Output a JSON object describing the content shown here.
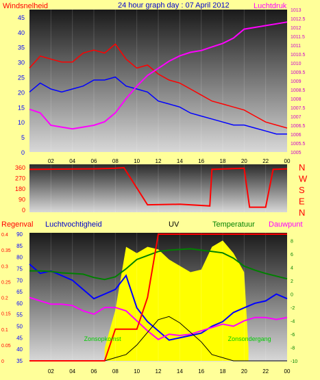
{
  "title": "24 hour graph day : 07 April 2012",
  "colors": {
    "bg": "#ffff99",
    "wind_gust": "#ff0000",
    "wind_avg": "#0000ff",
    "pressure": "#ff00ff",
    "dir": "#ff0000",
    "rain": "#ff0000",
    "humidity": "#0000ff",
    "temp": "#008000",
    "dew": "#ff00ff",
    "uv": "#000000",
    "solar": "#ffff00",
    "axis_left": "#0000ff",
    "axis_pressure": "#cc00cc",
    "axis_temp": "#008000"
  },
  "x_ticks": [
    "02",
    "04",
    "06",
    "08",
    "10",
    "12",
    "14",
    "16",
    "18",
    "20",
    "22",
    "00"
  ],
  "chart_data": [
    {
      "type": "line",
      "ylabel_left": "Windsnelheid",
      "ylabel_right": "Luchtdruk",
      "ylim_left": [
        0,
        47.5
      ],
      "ylim_right": [
        1005,
        1013
      ],
      "y_ticks_left": [
        "0",
        "5",
        "10",
        "15",
        "20",
        "25",
        "30",
        "35",
        "40",
        "45"
      ],
      "y_ticks_right": [
        "1005",
        "1005.5",
        "1006",
        "1006.5",
        "1007",
        "1007.5",
        "1008",
        "1008.5",
        "1009",
        "1009.5",
        "1010",
        "1010.5",
        "1011",
        "1011.5",
        "1012",
        "1012.5",
        "1013"
      ],
      "x": [
        0,
        1,
        2,
        3,
        4,
        5,
        6,
        7,
        8,
        9,
        10,
        11,
        12,
        13,
        14,
        15,
        16,
        17,
        18,
        19,
        20,
        21,
        22,
        23,
        24
      ],
      "series": [
        {
          "role": "wind_gust",
          "axis": "left",
          "values": [
            28,
            32,
            31,
            30,
            30,
            33,
            34,
            33,
            36,
            31,
            28,
            29,
            26,
            24,
            23,
            21,
            19,
            17,
            16,
            15,
            14,
            12,
            10,
            9,
            8
          ]
        },
        {
          "role": "wind_avg",
          "axis": "left",
          "values": [
            20,
            23,
            21,
            20,
            21,
            22,
            24,
            24,
            25,
            22,
            21,
            20,
            17,
            16,
            15,
            13,
            12,
            11,
            10,
            9,
            9,
            8,
            7,
            6,
            6
          ]
        },
        {
          "role": "pressure",
          "axis": "right",
          "values": [
            1007.4,
            1007.2,
            1006.5,
            1006.4,
            1006.3,
            1006.4,
            1006.5,
            1006.7,
            1007.2,
            1008.0,
            1008.7,
            1009.3,
            1009.7,
            1010.1,
            1010.4,
            1010.6,
            1010.7,
            1010.9,
            1011.1,
            1011.4,
            1011.9,
            1012.0,
            1012.1,
            1012.2,
            1012.3
          ]
        }
      ]
    },
    {
      "type": "line",
      "y_ticks": [
        "360",
        "270",
        "180",
        "90",
        "0"
      ],
      "ylim": [
        0,
        360
      ],
      "dir_labels": [
        "N",
        "W",
        "S",
        "E",
        "N"
      ],
      "x": [
        0,
        6,
        8,
        8.8,
        11,
        14,
        16.8,
        17,
        20,
        20.5,
        22,
        22.7,
        24
      ],
      "series": [
        {
          "role": "dir",
          "values": [
            340,
            345,
            350,
            355,
            40,
            45,
            30,
            340,
            350,
            20,
            20,
            340,
            345
          ]
        }
      ]
    },
    {
      "type": "line",
      "labels": {
        "rain": "Regenval",
        "humidity": "Luchtvochtigheid",
        "uv": "UV",
        "temp": "Temperatuur",
        "dew": "Dauwpunt"
      },
      "ylim_rain": [
        0,
        0.4
      ],
      "ylim_hum": [
        35,
        90
      ],
      "ylim_temp": [
        -10,
        9
      ],
      "y_ticks_rain": [
        "0",
        "0.05",
        "0.1",
        "0.15",
        "0.2",
        "0.25",
        "0.3",
        "0.35",
        "0.4"
      ],
      "y_ticks_hum": [
        "35",
        "40",
        "45",
        "50",
        "55",
        "60",
        "65",
        "70",
        "75",
        "80",
        "85",
        "90"
      ],
      "y_ticks_temp": [
        "-10",
        "-8",
        "-6",
        "-4",
        "-2",
        "0",
        "2",
        "4",
        "6",
        "8"
      ],
      "annotations": [
        "Zonsopkomst",
        "Zonsondergang"
      ],
      "sunrise": 7.0,
      "sunset": 20.4,
      "x": [
        0,
        1,
        2,
        3,
        4,
        5,
        6,
        7,
        8,
        9,
        10,
        11,
        12,
        13,
        14,
        15,
        16,
        17,
        18,
        19,
        20,
        21,
        22,
        23,
        24
      ],
      "series": [
        {
          "role": "humidity",
          "axis": "hum",
          "values": [
            77,
            73,
            74,
            72,
            70,
            66,
            62,
            64,
            66,
            72,
            58,
            52,
            48,
            44,
            45,
            46,
            47,
            50,
            52,
            56,
            58,
            60,
            61,
            64,
            62
          ]
        },
        {
          "role": "temp",
          "axis": "temp",
          "values": [
            3.5,
            3.5,
            3.4,
            3.2,
            3.1,
            3.0,
            2.5,
            2.2,
            2.6,
            3.8,
            5.2,
            5.8,
            6.4,
            6.6,
            6.7,
            6.8,
            6.6,
            6.4,
            6.2,
            5.4,
            4.2,
            3.6,
            3.1,
            2.7,
            2.3
          ]
        },
        {
          "role": "dew",
          "axis": "temp",
          "values": [
            -0.5,
            -1.0,
            -1.5,
            -1.5,
            -1.7,
            -2.5,
            -3.0,
            -2.0,
            -2.0,
            -2.5,
            -4.0,
            -5.5,
            -6.8,
            -6.0,
            -6.2,
            -6.0,
            -5.5,
            -5.0,
            -4.5,
            -4.8,
            -4.0,
            -3.5,
            -3.5,
            -3.8,
            -3.5
          ]
        },
        {
          "role": "uv",
          "axis": "rain",
          "values": [
            0,
            0,
            0,
            0,
            0,
            0,
            0,
            0,
            0.01,
            0.02,
            0.05,
            0.09,
            0.13,
            0.14,
            0.12,
            0.09,
            0.06,
            0.02,
            0.01,
            0,
            0,
            0,
            0,
            0,
            0
          ]
        },
        {
          "role": "rain",
          "axis": "rain",
          "values": [
            0,
            0,
            0,
            0,
            0,
            0,
            0,
            0,
            0.1,
            0.1,
            0.1,
            0.2,
            0.4,
            0.4,
            0.4,
            0.4,
            0.4,
            0.4,
            0.4,
            0.4,
            0.4,
            0.4,
            0.4,
            0.4,
            0.4
          ]
        }
      ],
      "solar_x": [
        7,
        8,
        9,
        10,
        11,
        12,
        13,
        14,
        15,
        16,
        17,
        18,
        19,
        20,
        20.4
      ],
      "solar_values": [
        0.1,
        0.4,
        0.9,
        0.85,
        0.9,
        0.88,
        0.8,
        0.75,
        0.7,
        0.72,
        0.9,
        0.95,
        0.85,
        0.7,
        0.1
      ]
    }
  ]
}
